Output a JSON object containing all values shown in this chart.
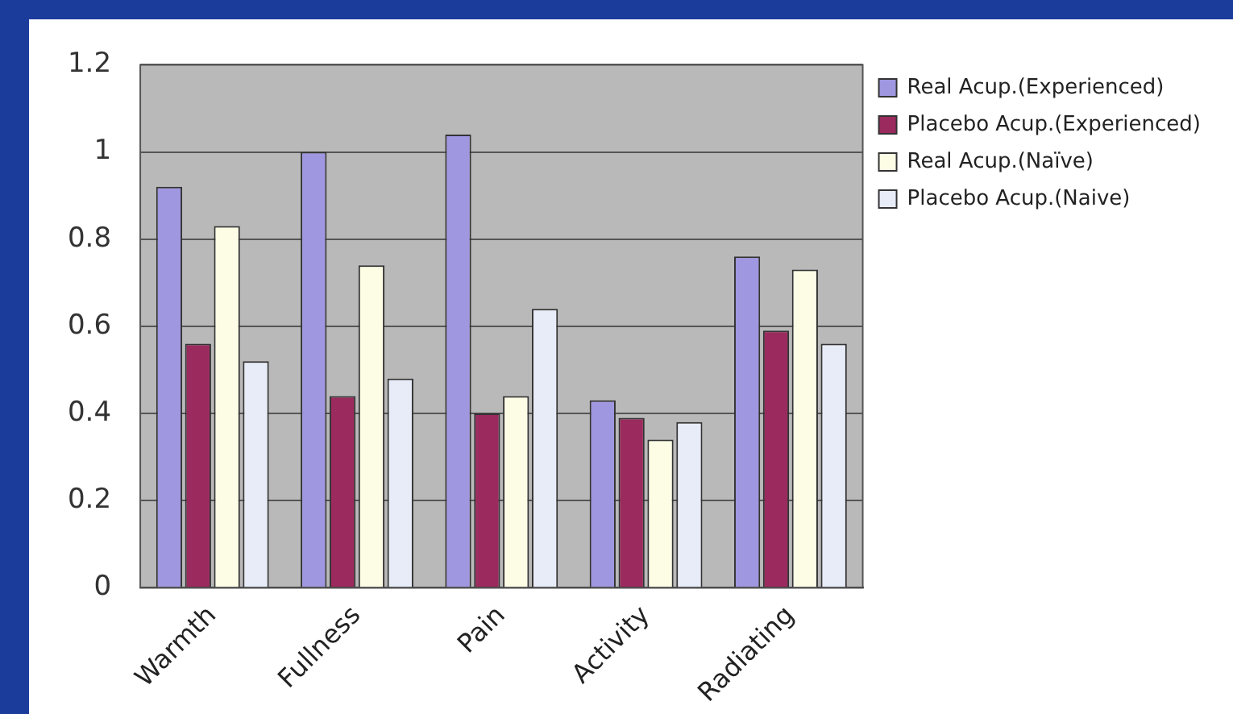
{
  "chart_data": {
    "type": "bar",
    "categories": [
      "Warmth",
      "Fullness",
      "Pain",
      "Activity",
      "Radiating"
    ],
    "series": [
      {
        "name": "Real Acup.(Experienced)",
        "color": "#9f97e0",
        "values": [
          0.92,
          1.0,
          1.04,
          0.43,
          0.76
        ]
      },
      {
        "name": "Placebo Acup.(Experienced)",
        "color": "#9b2a5e",
        "values": [
          0.56,
          0.44,
          0.4,
          0.39,
          0.59
        ]
      },
      {
        "name": "Real Acup.(Naïve)",
        "color": "#fdfde6",
        "values": [
          0.83,
          0.74,
          0.44,
          0.34,
          0.73
        ]
      },
      {
        "name": "Placebo Acup.(Naive)",
        "color": "#e8ecf8",
        "values": [
          0.52,
          0.48,
          0.64,
          0.38,
          0.56
        ]
      }
    ],
    "ylim": [
      0,
      1.2
    ],
    "yticks": [
      0,
      0.2,
      0.4,
      0.6,
      0.8,
      1,
      1.2
    ],
    "grid": "y",
    "legend": "right"
  }
}
